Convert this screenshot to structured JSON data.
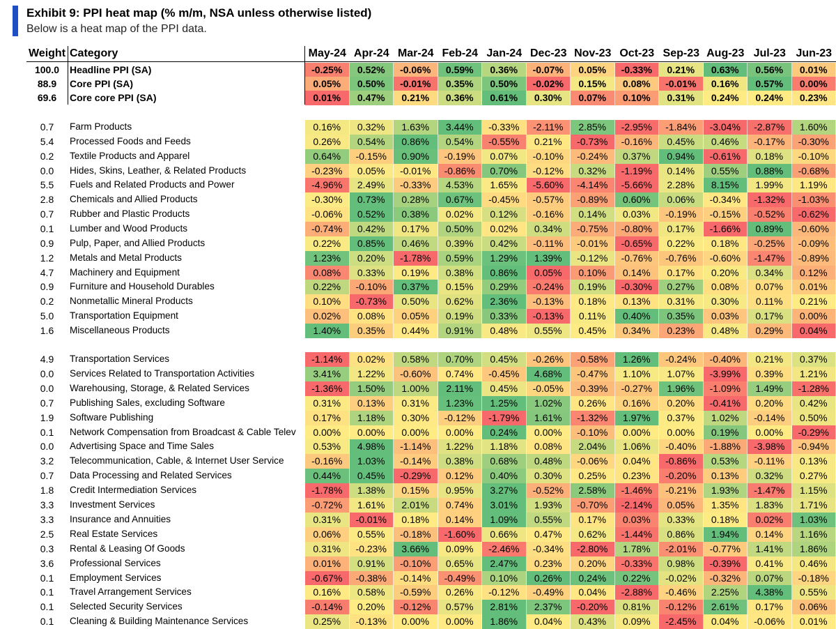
{
  "header": {
    "title": "Exhibit 9: PPI heat map (% m/m, NSA unless otherwise listed)",
    "subtitle": "Below is a heat map of the PPI data."
  },
  "table": {
    "columns": [
      "Weight",
      "Category",
      "May-24",
      "Apr-24",
      "Mar-24",
      "Feb-24",
      "Jan-24",
      "Dec-23",
      "Nov-23",
      "Oct-23",
      "Sep-23",
      "Aug-23",
      "Jul-23",
      "Jun-23"
    ],
    "sections": [
      {
        "rows": [
          [
            "100.0",
            "Headline PPI (SA)",
            "-0.25%",
            "0.52%",
            "-0.06%",
            "0.59%",
            "0.36%",
            "-0.07%",
            "0.05%",
            "-0.33%",
            "0.21%",
            "0.63%",
            "0.56%",
            "0.01%"
          ],
          [
            "88.9",
            "Core PPI (SA)",
            "0.05%",
            "0.50%",
            "-0.01%",
            "0.35%",
            "0.50%",
            "-0.02%",
            "0.15%",
            "0.08%",
            "-0.01%",
            "0.16%",
            "0.57%",
            "0.00%"
          ],
          [
            "69.6",
            "Core core PPI (SA)",
            "0.01%",
            "0.47%",
            "0.21%",
            "0.36%",
            "0.61%",
            "0.30%",
            "0.07%",
            "0.10%",
            "0.31%",
            "0.24%",
            "0.24%",
            "0.23%"
          ]
        ]
      },
      {
        "rows": [
          [
            "0.7",
            "Farm Products",
            "0.16%",
            "0.32%",
            "1.63%",
            "3.44%",
            "-0.33%",
            "-2.11%",
            "2.85%",
            "-2.95%",
            "-1.84%",
            "-3.04%",
            "-2.87%",
            "1.60%"
          ],
          [
            "5.4",
            "Processed Foods and Feeds",
            "0.26%",
            "0.54%",
            "0.86%",
            "0.54%",
            "-0.55%",
            "0.21%",
            "-0.73%",
            "-0.16%",
            "0.45%",
            "0.46%",
            "-0.17%",
            "-0.30%"
          ],
          [
            "0.2",
            "Textile Products and Apparel",
            "0.64%",
            "-0.15%",
            "0.90%",
            "-0.19%",
            "0.07%",
            "-0.10%",
            "-0.24%",
            "0.37%",
            "0.94%",
            "-0.61%",
            "0.18%",
            "-0.10%"
          ],
          [
            "0.0",
            "Hides, Skins, Leather, & Related Products",
            "-0.23%",
            "0.05%",
            "-0.01%",
            "-0.86%",
            "0.70%",
            "-0.12%",
            "0.32%",
            "-1.19%",
            "0.14%",
            "0.55%",
            "0.88%",
            "-0.68%"
          ],
          [
            "5.5",
            "Fuels and Related Products and Power",
            "-4.96%",
            "2.49%",
            "-0.33%",
            "4.53%",
            "1.65%",
            "-5.60%",
            "-4.14%",
            "-5.66%",
            "2.28%",
            "8.15%",
            "1.99%",
            "1.19%"
          ],
          [
            "2.8",
            "Chemicals and Allied Products",
            "-0.30%",
            "0.73%",
            "0.28%",
            "0.67%",
            "-0.45%",
            "-0.57%",
            "-0.89%",
            "0.60%",
            "0.06%",
            "-0.34%",
            "-1.32%",
            "-1.03%"
          ],
          [
            "0.7",
            "Rubber and Plastic Products",
            "-0.06%",
            "0.52%",
            "0.38%",
            "0.02%",
            "0.12%",
            "-0.16%",
            "0.14%",
            "0.03%",
            "-0.19%",
            "-0.15%",
            "-0.52%",
            "-0.62%"
          ],
          [
            "0.1",
            "Lumber and Wood Products",
            "-0.74%",
            "0.42%",
            "0.17%",
            "0.50%",
            "0.02%",
            "0.34%",
            "-0.75%",
            "-0.80%",
            "0.17%",
            "-1.66%",
            "0.89%",
            "-0.60%"
          ],
          [
            "0.9",
            "Pulp, Paper, and Allied Products",
            "0.22%",
            "0.85%",
            "0.46%",
            "0.39%",
            "0.42%",
            "-0.11%",
            "-0.01%",
            "-0.65%",
            "0.22%",
            "0.18%",
            "-0.25%",
            "-0.09%"
          ],
          [
            "1.2",
            "Metals and Metal Products",
            "1.23%",
            "0.20%",
            "-1.78%",
            "0.59%",
            "1.29%",
            "1.39%",
            "-0.12%",
            "-0.76%",
            "-0.76%",
            "-0.60%",
            "-1.47%",
            "-0.89%"
          ],
          [
            "4.7",
            "Machinery and Equipment",
            "0.08%",
            "0.33%",
            "0.19%",
            "0.38%",
            "0.86%",
            "0.05%",
            "0.10%",
            "0.14%",
            "0.17%",
            "0.20%",
            "0.34%",
            "0.12%"
          ],
          [
            "0.9",
            "Furniture and Household Durables",
            "0.22%",
            "-0.10%",
            "0.37%",
            "0.15%",
            "0.29%",
            "-0.24%",
            "0.19%",
            "-0.30%",
            "0.27%",
            "0.08%",
            "0.07%",
            "0.01%"
          ],
          [
            "0.2",
            "Nonmetallic Mineral Products",
            "0.10%",
            "-0.73%",
            "0.50%",
            "0.62%",
            "2.36%",
            "-0.13%",
            "0.18%",
            "0.13%",
            "0.31%",
            "0.30%",
            "0.11%",
            "0.21%"
          ],
          [
            "5.0",
            "Transportation Equipment",
            "0.02%",
            "0.08%",
            "0.05%",
            "0.19%",
            "0.33%",
            "-0.13%",
            "0.11%",
            "0.40%",
            "0.35%",
            "0.03%",
            "0.17%",
            "0.00%"
          ],
          [
            "1.6",
            "Miscellaneous Products",
            "1.40%",
            "0.35%",
            "0.44%",
            "0.91%",
            "0.48%",
            "0.55%",
            "0.45%",
            "0.34%",
            "0.23%",
            "0.48%",
            "0.29%",
            "0.04%"
          ]
        ]
      },
      {
        "rows": [
          [
            "4.9",
            "Transportation Services",
            "-1.14%",
            "0.02%",
            "0.58%",
            "0.70%",
            "0.45%",
            "-0.26%",
            "-0.58%",
            "1.26%",
            "-0.24%",
            "-0.40%",
            "0.21%",
            "0.37%"
          ],
          [
            "0.0",
            "Services Related to Transportation Activities",
            "3.41%",
            "1.22%",
            "-0.60%",
            "0.74%",
            "-0.45%",
            "4.68%",
            "-0.47%",
            "1.10%",
            "1.07%",
            "-3.99%",
            "0.39%",
            "1.21%"
          ],
          [
            "0.0",
            "Warehousing, Storage, & Related Services",
            "-1.36%",
            "1.50%",
            "1.00%",
            "2.11%",
            "0.45%",
            "-0.05%",
            "-0.39%",
            "-0.27%",
            "1.96%",
            "-1.09%",
            "1.49%",
            "-1.28%"
          ],
          [
            "0.7",
            "Publishing Sales, excluding Software",
            "0.31%",
            "0.13%",
            "0.31%",
            "1.23%",
            "1.25%",
            "1.02%",
            "0.26%",
            "0.16%",
            "0.20%",
            "-0.41%",
            "0.20%",
            "0.42%"
          ],
          [
            "1.9",
            "Software Publishing",
            "0.17%",
            "1.18%",
            "0.30%",
            "-0.12%",
            "-1.79%",
            "1.61%",
            "-1.32%",
            "1.97%",
            "0.37%",
            "1.02%",
            "-0.14%",
            "0.50%"
          ],
          [
            "0.1",
            "Network Compensation from Broadcast & Cable Telev",
            "0.00%",
            "0.00%",
            "0.00%",
            "0.00%",
            "0.24%",
            "0.00%",
            "-0.10%",
            "0.00%",
            "0.00%",
            "0.19%",
            "0.00%",
            "-0.29%"
          ],
          [
            "0.0",
            "Advertising Space and Time Sales",
            "0.53%",
            "4.98%",
            "-1.14%",
            "1.22%",
            "1.18%",
            "0.08%",
            "2.04%",
            "1.06%",
            "-0.40%",
            "-1.88%",
            "-3.98%",
            "-0.94%"
          ],
          [
            "3.2",
            "Telecommunication, Cable, & Internet User Service",
            "-0.16%",
            "1.03%",
            "-0.14%",
            "0.38%",
            "0.68%",
            "0.48%",
            "-0.06%",
            "0.04%",
            "-0.86%",
            "0.53%",
            "-0.11%",
            "0.13%"
          ],
          [
            "0.7",
            "Data Processing and Related Services",
            "0.44%",
            "0.45%",
            "-0.29%",
            "0.12%",
            "0.40%",
            "0.30%",
            "0.25%",
            "0.23%",
            "-0.20%",
            "0.13%",
            "0.32%",
            "0.27%"
          ],
          [
            "1.8",
            "Credit Intermediation Services",
            "-1.78%",
            "1.38%",
            "0.15%",
            "0.95%",
            "3.27%",
            "-0.52%",
            "2.58%",
            "-1.46%",
            "-0.21%",
            "1.93%",
            "-1.47%",
            "1.15%"
          ],
          [
            "3.3",
            "Investment Services",
            "-0.72%",
            "1.61%",
            "2.01%",
            "0.74%",
            "3.01%",
            "1.93%",
            "-0.70%",
            "-2.14%",
            "0.05%",
            "1.35%",
            "1.83%",
            "1.71%"
          ],
          [
            "3.3",
            "Insurance and Annuities",
            "0.31%",
            "-0.01%",
            "0.18%",
            "0.14%",
            "1.09%",
            "0.55%",
            "0.17%",
            "0.03%",
            "0.33%",
            "0.18%",
            "0.02%",
            "1.03%"
          ],
          [
            "2.5",
            "Real Estate Services",
            "0.06%",
            "0.55%",
            "-0.18%",
            "-1.60%",
            "0.66%",
            "0.47%",
            "0.62%",
            "-1.44%",
            "0.86%",
            "1.94%",
            "0.14%",
            "1.16%"
          ],
          [
            "0.3",
            "Rental & Leasing Of Goods",
            "0.31%",
            "-0.23%",
            "3.66%",
            "0.09%",
            "-2.46%",
            "-0.34%",
            "-2.80%",
            "1.78%",
            "-2.01%",
            "-0.77%",
            "1.41%",
            "1.86%"
          ],
          [
            "3.6",
            "Professional Services",
            "0.01%",
            "0.91%",
            "-0.10%",
            "0.65%",
            "2.47%",
            "0.23%",
            "0.20%",
            "-0.33%",
            "0.98%",
            "-0.39%",
            "0.41%",
            "0.46%"
          ],
          [
            "0.1",
            "Employment Services",
            "-0.67%",
            "-0.38%",
            "-0.14%",
            "-0.49%",
            "0.10%",
            "0.26%",
            "0.24%",
            "0.22%",
            "-0.02%",
            "-0.32%",
            "0.07%",
            "-0.18%"
          ],
          [
            "0.1",
            "Travel Arrangement Services",
            "0.16%",
            "0.58%",
            "-0.59%",
            "0.26%",
            "-0.12%",
            "-0.49%",
            "0.04%",
            "-2.88%",
            "-0.46%",
            "2.25%",
            "4.38%",
            "0.55%"
          ],
          [
            "0.1",
            "Selected Security Services",
            "-0.14%",
            "0.20%",
            "-0.12%",
            "0.57%",
            "2.81%",
            "2.37%",
            "-0.20%",
            "0.81%",
            "-0.12%",
            "2.61%",
            "0.17%",
            "0.06%"
          ],
          [
            "0.1",
            "Cleaning & Building Maintenance Services",
            "0.25%",
            "-0.13%",
            "0.00%",
            "0.00%",
            "1.86%",
            "0.04%",
            "0.43%",
            "0.09%",
            "-2.45%",
            "0.04%",
            "-0.06%",
            "0.01%"
          ]
        ]
      }
    ]
  }
}
